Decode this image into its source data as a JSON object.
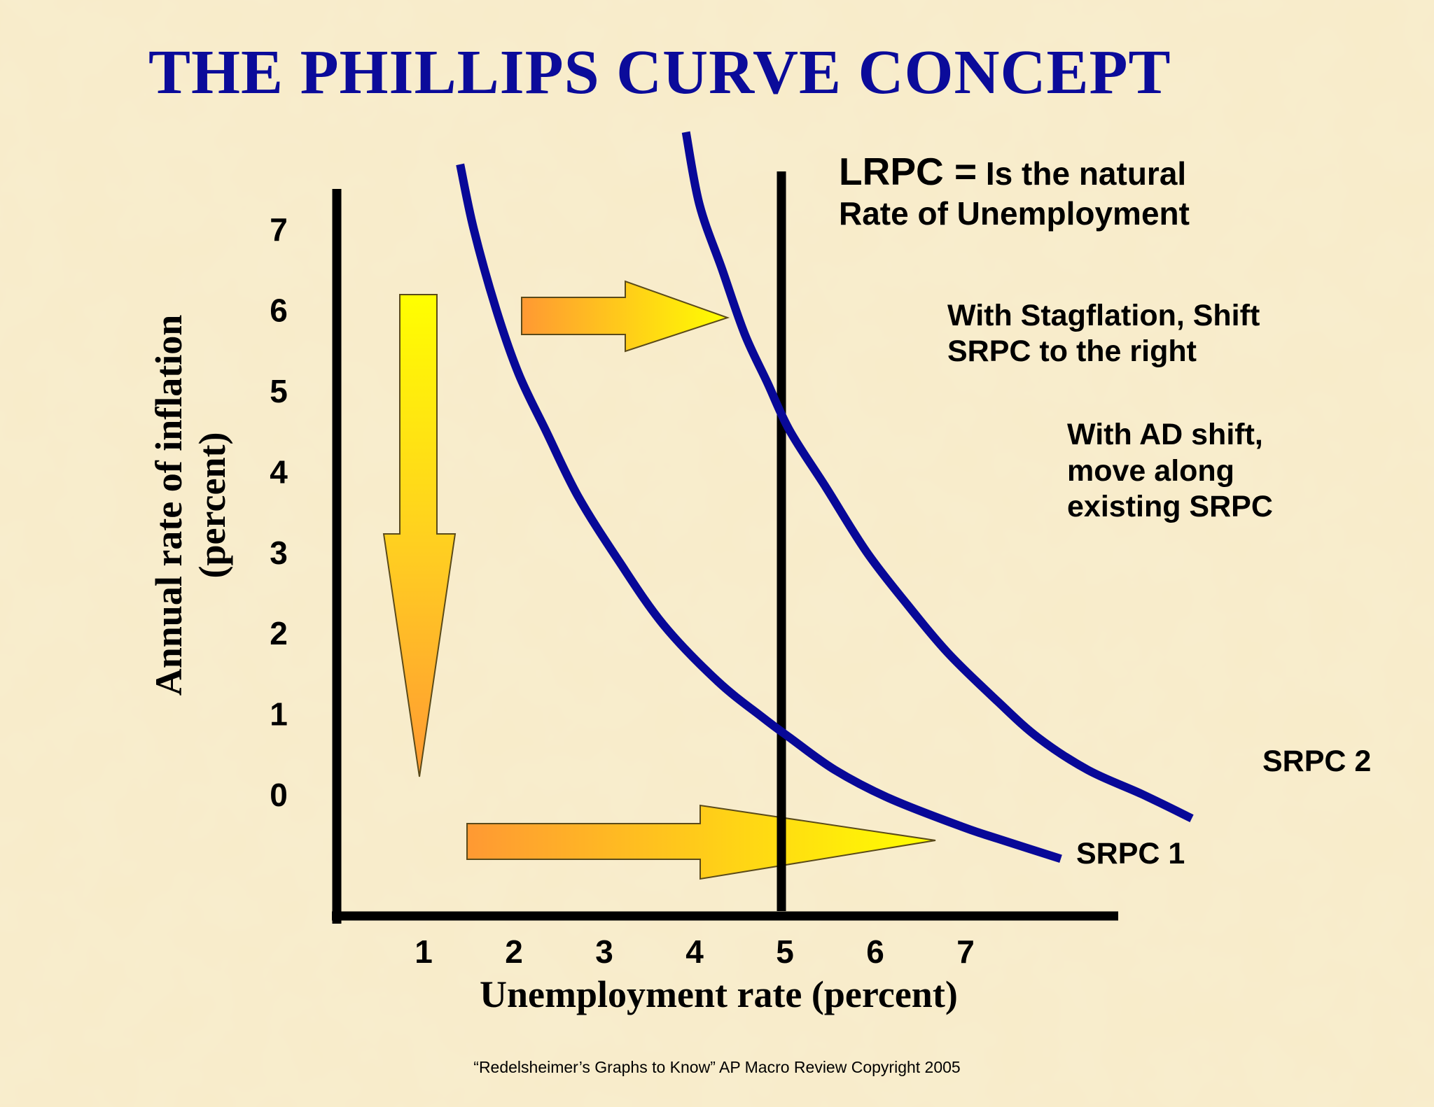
{
  "title": "THE PHILLIPS CURVE CONCEPT",
  "notes": {
    "lrpc_lead": "LRPC =",
    "lrpc_rest_line1": "Is the natural",
    "lrpc_line2": "Rate of Unemployment",
    "stagflation_line1": "With Stagflation, Shift",
    "stagflation_line2": "SRPC to the right",
    "ad_line1": "With AD shift,",
    "ad_line2": "move along",
    "ad_line3": "existing SRPC"
  },
  "footer": "“Redelsheimer’s Graphs to Know”  AP Macro Review Copyright 2005",
  "colors": {
    "background": "#f8ecc9",
    "title": "#0b0b9a",
    "curve": "#080898",
    "axis": "#000000",
    "arrow_light": "#ffff00",
    "arrow_dark": "#ff9933"
  },
  "arrows": [
    {
      "name": "down-arrow",
      "meaning": "move along existing SRPC",
      "direction": "down"
    },
    {
      "name": "right-arrow-upper",
      "meaning": "shift SRPC to the right",
      "direction": "right"
    },
    {
      "name": "right-arrow-lower",
      "meaning": "shift SRPC to the right",
      "direction": "right"
    }
  ],
  "chart_data": {
    "type": "line",
    "title": "THE PHILLIPS CURVE CONCEPT",
    "xlabel": "Unemployment rate (percent)",
    "ylabel": "Annual rate of inflation (percent)",
    "x_ticks": [
      1,
      2,
      3,
      4,
      5,
      6,
      7
    ],
    "y_ticks": [
      0,
      1,
      2,
      3,
      4,
      5,
      6,
      7
    ],
    "xlim": [
      0,
      8.7
    ],
    "ylim": [
      -1.5,
      7.5
    ],
    "grid": false,
    "lrpc": {
      "name": "LRPC",
      "x": 5
    },
    "series": [
      {
        "name": "SRPC 1",
        "points": [
          [
            1.35,
            7.8
          ],
          [
            1.5,
            7.0
          ],
          [
            1.75,
            6.0
          ],
          [
            2.0,
            5.2
          ],
          [
            2.3,
            4.5
          ],
          [
            2.65,
            3.7
          ],
          [
            3.1,
            2.9
          ],
          [
            3.6,
            2.1
          ],
          [
            4.2,
            1.4
          ],
          [
            4.7,
            0.95
          ],
          [
            5.0,
            0.7
          ],
          [
            5.5,
            0.3
          ],
          [
            6.1,
            -0.05
          ],
          [
            6.9,
            -0.4
          ],
          [
            7.3,
            -0.55
          ],
          [
            8.0,
            -0.8
          ]
        ]
      },
      {
        "name": "SRPC 2",
        "points": [
          [
            3.85,
            8.2
          ],
          [
            4.0,
            7.3
          ],
          [
            4.25,
            6.5
          ],
          [
            4.5,
            5.7
          ],
          [
            4.75,
            5.1
          ],
          [
            5.0,
            4.5
          ],
          [
            5.4,
            3.8
          ],
          [
            5.85,
            3.0
          ],
          [
            6.3,
            2.35
          ],
          [
            6.75,
            1.75
          ],
          [
            7.3,
            1.15
          ],
          [
            7.75,
            0.7
          ],
          [
            8.3,
            0.3
          ],
          [
            8.9,
            0.0
          ],
          [
            9.45,
            -0.3
          ]
        ]
      }
    ]
  }
}
